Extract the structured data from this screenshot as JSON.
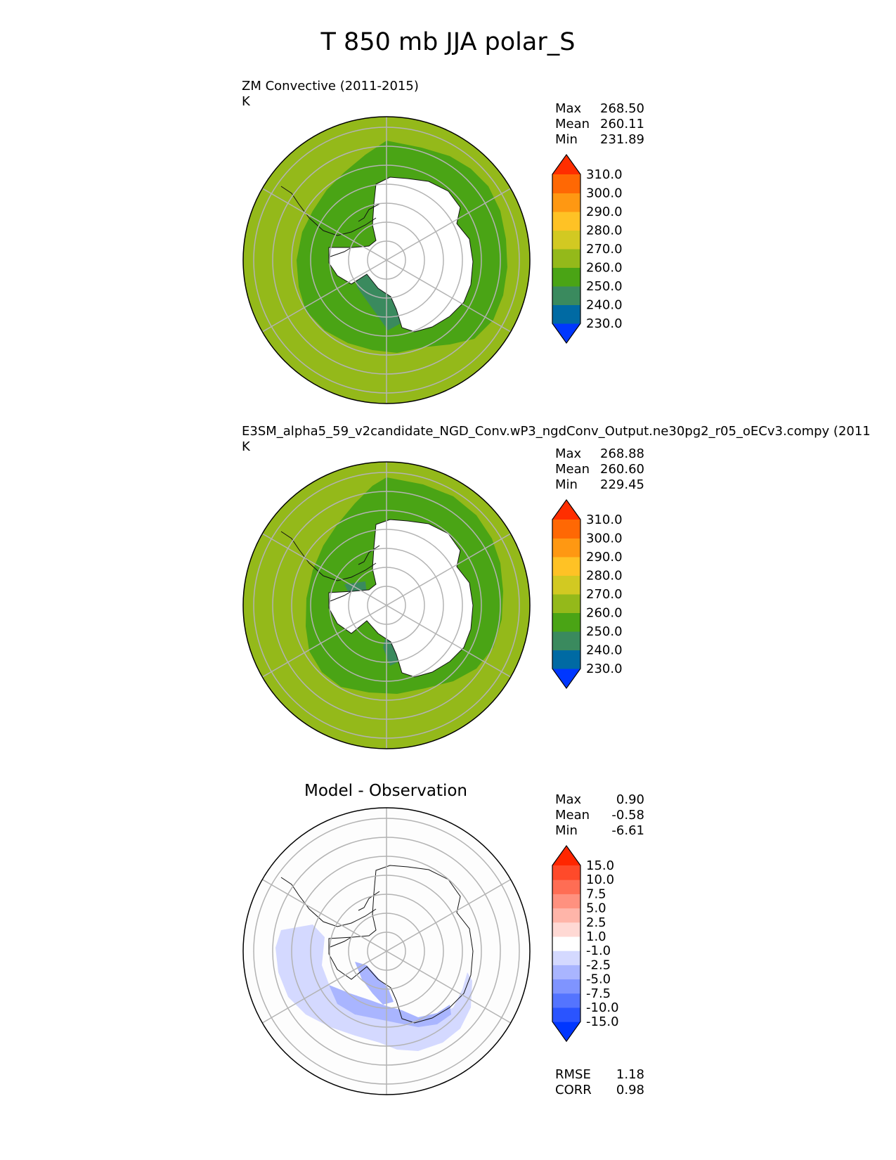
{
  "figure": {
    "title": "T 850 mb JJA polar_S"
  },
  "panels": [
    {
      "title": "ZM Convective (2011-2015)",
      "units": "K",
      "stats": [
        {
          "label": "Max",
          "value": "268.50"
        },
        {
          "label": "Mean",
          "value": "260.11"
        },
        {
          "label": "Min",
          "value": "231.89"
        }
      ],
      "colorbar": {
        "colors": [
          "#0037ff",
          "#006aa3",
          "#3a8a5e",
          "#4aa415",
          "#94b91a",
          "#d2c922",
          "#ffc225",
          "#ff9812",
          "#ff6804",
          "#ff2e00"
        ],
        "ticks": [
          "230.0",
          "240.0",
          "250.0",
          "260.0",
          "270.0",
          "280.0",
          "290.0",
          "300.0",
          "310.0"
        ]
      }
    },
    {
      "title": "E3SM_alpha5_59_v2candidate_NGD_Conv.wP3_ngdConv_Output.ne30pg2_r05_oECv3.compy (2011",
      "units": "K",
      "stats": [
        {
          "label": "Max",
          "value": "268.88"
        },
        {
          "label": "Mean",
          "value": "260.60"
        },
        {
          "label": "Min",
          "value": "229.45"
        }
      ],
      "colorbar": {
        "colors": [
          "#0037ff",
          "#006aa3",
          "#3a8a5e",
          "#4aa415",
          "#94b91a",
          "#d2c922",
          "#ffc225",
          "#ff9812",
          "#ff6804",
          "#ff2e00"
        ],
        "ticks": [
          "230.0",
          "240.0",
          "250.0",
          "260.0",
          "270.0",
          "280.0",
          "290.0",
          "300.0",
          "310.0"
        ]
      }
    },
    {
      "title": "Model - Observation",
      "stats": [
        {
          "label": "Max",
          "value": "0.90"
        },
        {
          "label": "Mean",
          "value": "-0.58"
        },
        {
          "label": "Min",
          "value": "-6.61"
        }
      ],
      "colorbar": {
        "colors": [
          "#0036ff",
          "#2a54ff",
          "#5474ff",
          "#7f94ff",
          "#a9b5ff",
          "#d4d9ff",
          "#ffffff",
          "#ffd9d4",
          "#ffb5a9",
          "#ff917f",
          "#ff6d54",
          "#ff4a2a",
          "#ff2600"
        ],
        "ticks": [
          "-15.0",
          "-10.0",
          "-7.5",
          "-5.0",
          "-2.5",
          "-1.0",
          "1.0",
          "2.5",
          "5.0",
          "7.5",
          "10.0",
          "15.0"
        ]
      },
      "metrics": [
        {
          "label": "RMSE",
          "value": "1.18"
        },
        {
          "label": "CORR",
          "value": "0.98"
        }
      ]
    }
  ],
  "chart_data": [
    {
      "type": "heatmap",
      "projection": "south polar stereographic",
      "title": "ZM Convective (2011-2015)",
      "units": "K",
      "levels": [
        230,
        240,
        250,
        260,
        270,
        280,
        290,
        300,
        310
      ],
      "extend": "both",
      "field_bands": [
        {
          "lat_min": -90,
          "lat_max": -70,
          "value": "masked (Antarctica)"
        },
        {
          "lat_min": -70,
          "lat_max": -60,
          "range": [
            250,
            260
          ]
        },
        {
          "lat_min": -60,
          "lat_max": -50,
          "range": [
            260,
            270
          ]
        }
      ],
      "stats": {
        "max": 268.5,
        "mean": 260.11,
        "min": 231.89
      }
    },
    {
      "type": "heatmap",
      "projection": "south polar stereographic",
      "title": "E3SM_alpha5_59_v2candidate_NGD_Conv.wP3_ngdConv_Output.ne30pg2_r05_oECv3.compy (2011",
      "units": "K",
      "levels": [
        230,
        240,
        250,
        260,
        270,
        280,
        290,
        300,
        310
      ],
      "extend": "both",
      "stats": {
        "max": 268.88,
        "mean": 260.6,
        "min": 229.45
      }
    },
    {
      "type": "heatmap",
      "projection": "south polar stereographic",
      "title": "Model - Observation",
      "levels": [
        -15.0,
        -10.0,
        -7.5,
        -5.0,
        -2.5,
        -1.0,
        1.0,
        2.5,
        5.0,
        7.5,
        10.0,
        15.0
      ],
      "extend": "both",
      "stats": {
        "max": 0.9,
        "mean": -0.58,
        "min": -6.61
      },
      "metrics": {
        "rmse": 1.18,
        "corr": 0.98
      }
    }
  ]
}
